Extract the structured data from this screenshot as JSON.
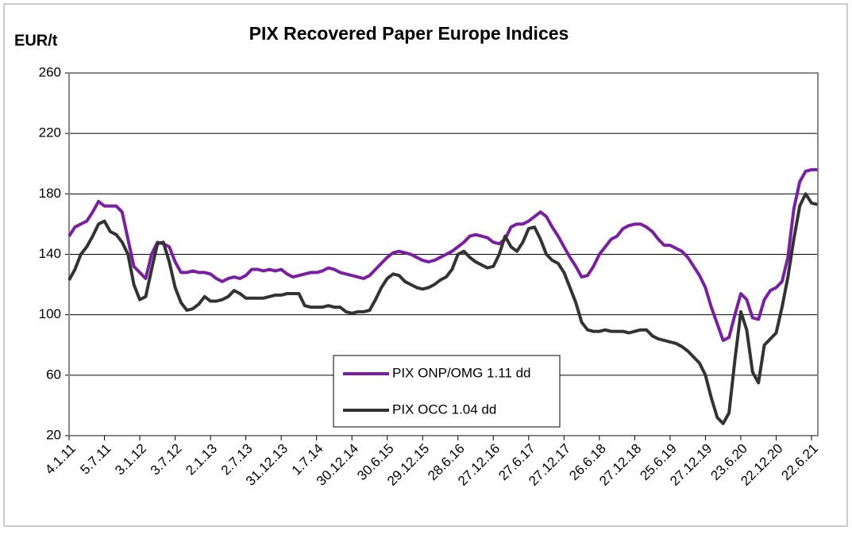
{
  "chart_data": {
    "type": "line",
    "title": "PIX Recovered Paper Europe Indices",
    "y_label": "EUR/t",
    "categories": [
      "4.1.11",
      null,
      null,
      null,
      null,
      null,
      "5.7.11",
      null,
      null,
      null,
      null,
      null,
      "3.1.12",
      null,
      null,
      null,
      null,
      null,
      "3.7.12",
      null,
      null,
      null,
      null,
      null,
      "2.1.13",
      null,
      null,
      null,
      null,
      null,
      "2.7.13",
      null,
      null,
      null,
      null,
      null,
      "31.12.13",
      null,
      null,
      null,
      null,
      null,
      "1.7.14",
      null,
      null,
      null,
      null,
      null,
      "30.12.14",
      null,
      null,
      null,
      null,
      null,
      "30.6.15",
      null,
      null,
      null,
      null,
      null,
      "29.12.15",
      null,
      null,
      null,
      null,
      null,
      "28.6.16",
      null,
      null,
      null,
      null,
      null,
      "27.12.16",
      null,
      null,
      null,
      null,
      null,
      "27.6.17",
      null,
      null,
      null,
      null,
      null,
      "27.12.17",
      null,
      null,
      null,
      null,
      null,
      "26.6.18",
      null,
      null,
      null,
      null,
      null,
      "27.12.18",
      null,
      null,
      null,
      null,
      null,
      "25.6.19",
      null,
      null,
      null,
      null,
      null,
      "27.12.19",
      null,
      null,
      null,
      null,
      null,
      "23.6.20",
      null,
      null,
      null,
      null,
      null,
      "22.12.20",
      null,
      null,
      null,
      null,
      null,
      "22.6.21",
      null
    ],
    "series": [
      {
        "name": "PIX ONP/OMG 1.11 dd",
        "color": "#7b1fa2",
        "values": [
          152,
          158,
          160,
          162,
          168,
          175,
          172,
          172,
          172,
          168,
          150,
          132,
          128,
          124,
          140,
          148,
          147,
          145,
          135,
          128,
          128,
          129,
          128,
          128,
          127,
          124,
          122,
          124,
          125,
          124,
          126,
          130,
          130,
          129,
          130,
          129,
          130,
          127,
          125,
          126,
          127,
          128,
          128,
          129,
          131,
          130,
          128,
          127,
          126,
          125,
          124,
          126,
          130,
          134,
          138,
          141,
          142,
          141,
          140,
          138,
          136,
          135,
          136,
          138,
          140,
          142,
          145,
          148,
          152,
          153,
          152,
          151,
          148,
          147,
          150,
          158,
          160,
          160,
          162,
          165,
          168,
          165,
          158,
          152,
          145,
          138,
          132,
          125,
          126,
          132,
          140,
          145,
          150,
          152,
          157,
          159,
          160,
          160,
          158,
          155,
          150,
          146,
          146,
          144,
          142,
          138,
          132,
          126,
          118,
          105,
          94,
          83,
          85,
          100,
          114,
          110,
          98,
          97,
          110,
          116,
          118,
          122,
          138,
          170,
          188,
          195,
          196,
          196
        ]
      },
      {
        "name": "PIX OCC 1.04 dd",
        "color": "#333333",
        "values": [
          123,
          130,
          140,
          145,
          152,
          160,
          162,
          155,
          153,
          148,
          140,
          120,
          110,
          112,
          130,
          147,
          148,
          135,
          118,
          108,
          103,
          104,
          107,
          112,
          109,
          109,
          110,
          112,
          116,
          114,
          111,
          111,
          111,
          111,
          112,
          113,
          113,
          114,
          114,
          114,
          106,
          105,
          105,
          105,
          106,
          105,
          105,
          102,
          101,
          102,
          102,
          103,
          110,
          118,
          124,
          127,
          126,
          122,
          120,
          118,
          117,
          118,
          120,
          123,
          125,
          130,
          140,
          142,
          138,
          135,
          133,
          131,
          132,
          140,
          152,
          145,
          142,
          148,
          157,
          158,
          150,
          140,
          136,
          134,
          128,
          118,
          108,
          95,
          90,
          89,
          89,
          90,
          89,
          89,
          89,
          88,
          89,
          90,
          90,
          86,
          84,
          83,
          82,
          81,
          79,
          76,
          72,
          68,
          60,
          45,
          32,
          28,
          35,
          70,
          102,
          90,
          62,
          55,
          80,
          84,
          88,
          105,
          125,
          150,
          172,
          180,
          174,
          173
        ]
      }
    ],
    "ylim": [
      20,
      260
    ],
    "yticks": [
      20,
      60,
      100,
      140,
      180,
      220,
      260
    ],
    "grid": true
  }
}
